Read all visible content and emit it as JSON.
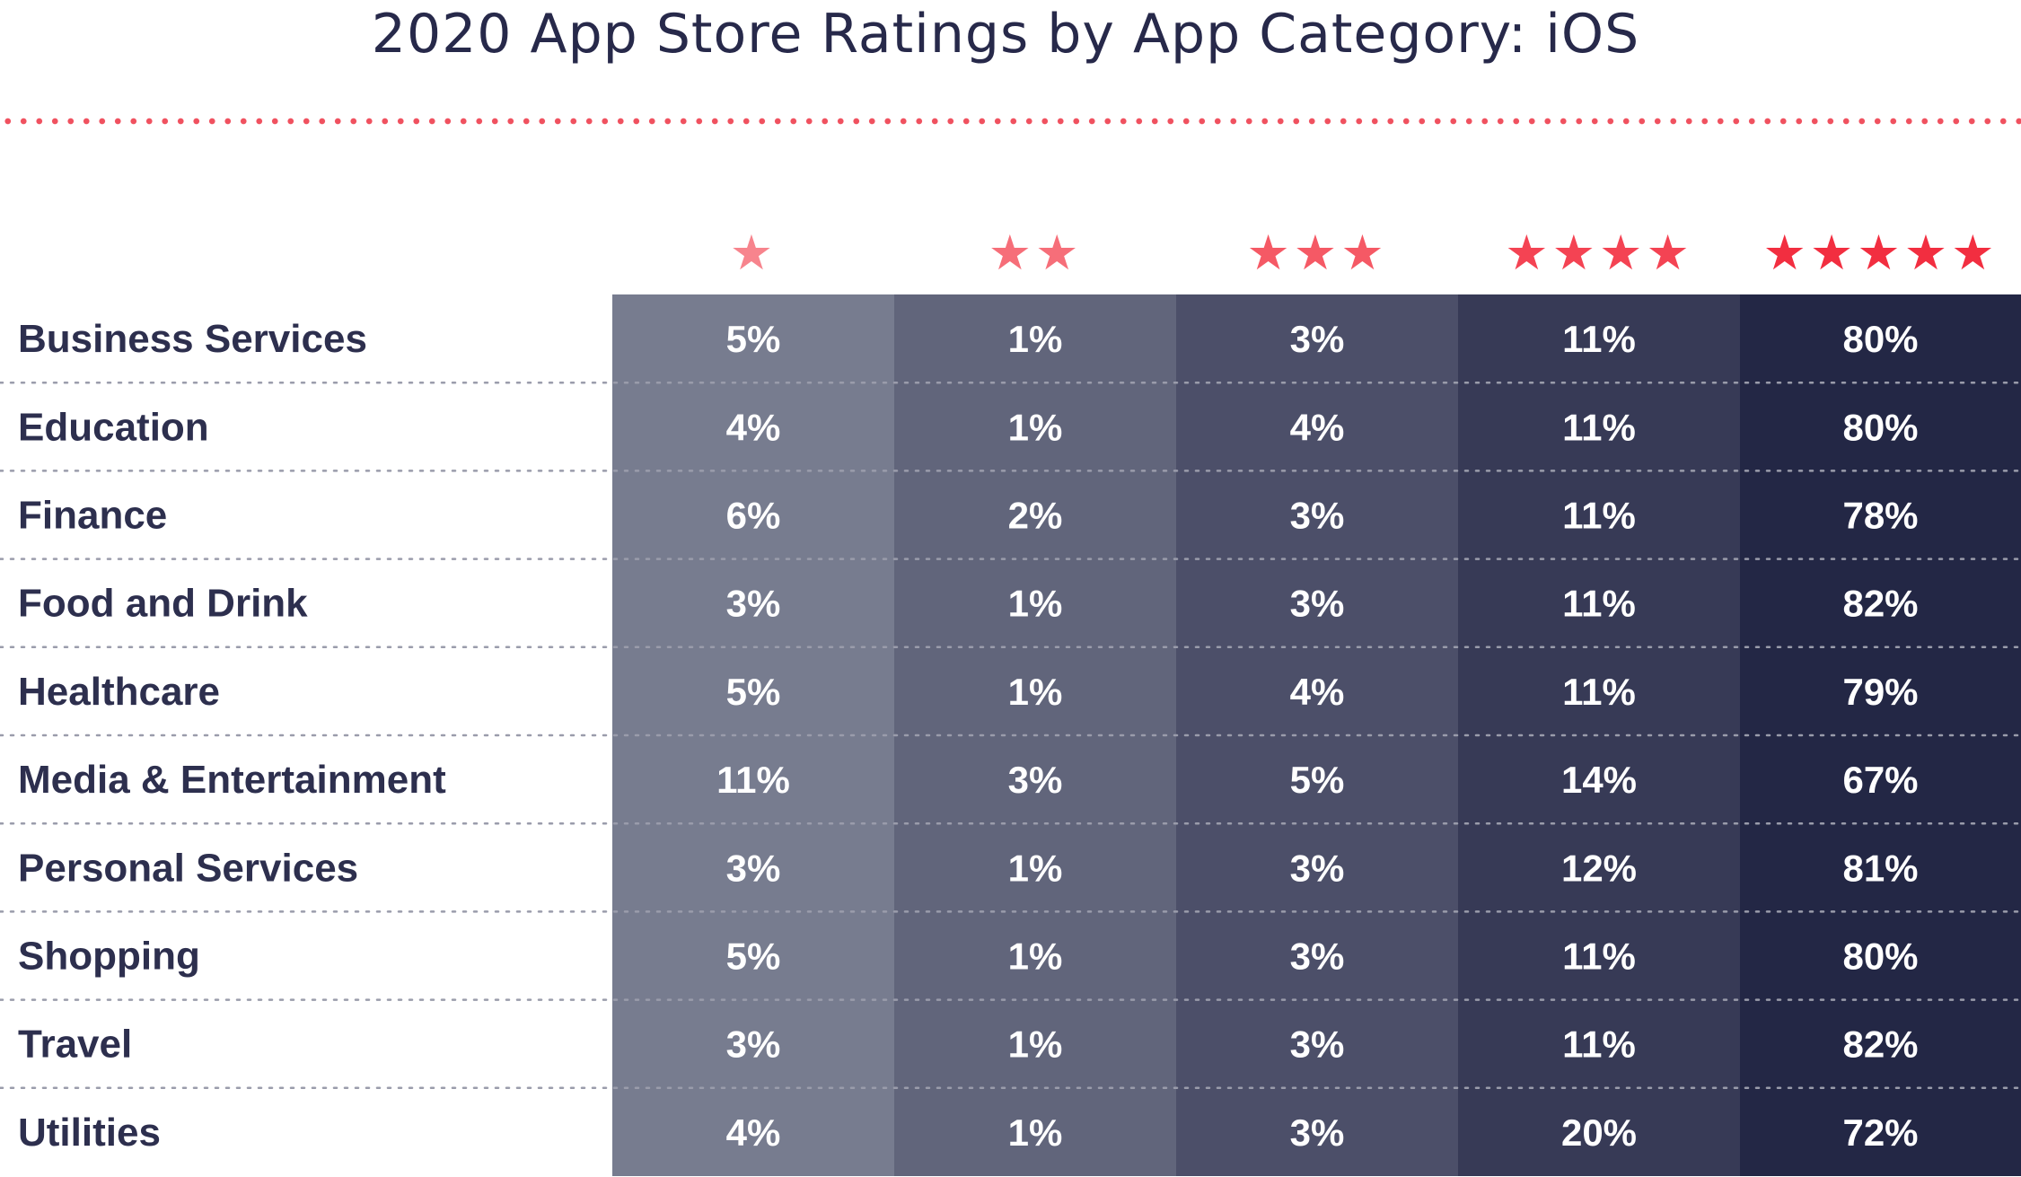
{
  "chart_data": {
    "type": "table",
    "title": "2020 App Store Ratings by App Category: iOS",
    "columns": [
      {
        "stars": 1,
        "label": "★"
      },
      {
        "stars": 2,
        "label": "★★"
      },
      {
        "stars": 3,
        "label": "★★★"
      },
      {
        "stars": 4,
        "label": "★★★★"
      },
      {
        "stars": 5,
        "label": "★★★★★"
      }
    ],
    "rows": [
      {
        "category": "Business Services",
        "values": [
          "5%",
          "1%",
          "3%",
          "11%",
          "80%"
        ]
      },
      {
        "category": "Education",
        "values": [
          "4%",
          "1%",
          "4%",
          "11%",
          "80%"
        ]
      },
      {
        "category": "Finance",
        "values": [
          "6%",
          "2%",
          "3%",
          "11%",
          "78%"
        ]
      },
      {
        "category": "Food and Drink",
        "values": [
          "3%",
          "1%",
          "3%",
          "11%",
          "82%"
        ]
      },
      {
        "category": "Healthcare",
        "values": [
          "5%",
          "1%",
          "4%",
          "11%",
          "79%"
        ]
      },
      {
        "category": "Media & Entertainment",
        "values": [
          "11%",
          "3%",
          "5%",
          "14%",
          "67%"
        ]
      },
      {
        "category": "Personal Services",
        "values": [
          "3%",
          "1%",
          "3%",
          "12%",
          "81%"
        ]
      },
      {
        "category": "Shopping",
        "values": [
          "5%",
          "1%",
          "3%",
          "11%",
          "80%"
        ]
      },
      {
        "category": "Travel",
        "values": [
          "3%",
          "1%",
          "3%",
          "11%",
          "82%"
        ]
      },
      {
        "category": "Utilities",
        "values": [
          "4%",
          "1%",
          "3%",
          "20%",
          "72%"
        ]
      }
    ],
    "column_colors": [
      "#777c8f",
      "#61657b",
      "#4c4f69",
      "#373a56",
      "#232745"
    ],
    "star_colors": [
      "#f7848d",
      "#f66e79",
      "#f55965",
      "#f44353",
      "#f22e40"
    ],
    "label_color": "#2d2f4e",
    "value_color": "#ffffff",
    "divider_color": "#9a9cab",
    "title_rule_color": "#f0515f"
  }
}
